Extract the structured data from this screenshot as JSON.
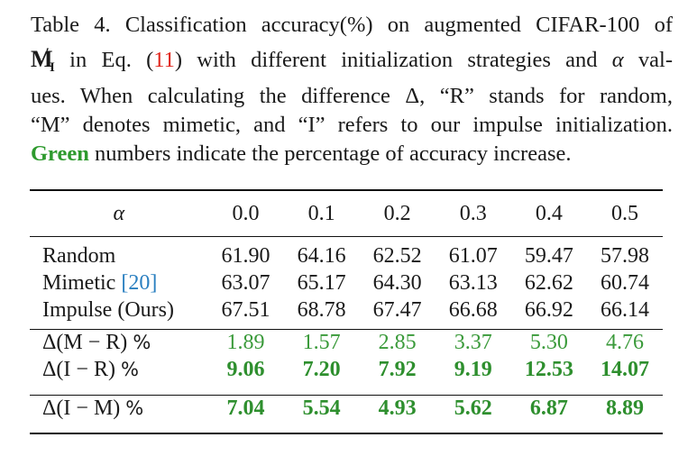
{
  "caption": {
    "line1": "Table 4. Classification accuracy(%) on augmented CIFAR-100 of",
    "line2_symbol_main": "M",
    "line2_symbol_sup": "′",
    "line2_symbol_sub": "I",
    "line2_in_eq": " in Eq. (",
    "line2_ref": "11",
    "line2_rest": ") with different initialization strategies and ",
    "line2_alpha": "α",
    "line2_end": " val-",
    "line3": "ues.  When calculating the difference Δ, “R” stands for random,",
    "line4": "“M” denotes mimetic, and “I” refers to our impulse initialization.",
    "line5_green": "Green",
    "line5_rest": " numbers indicate the percentage of accuracy increase."
  },
  "table": {
    "header_label": "α",
    "alphas": [
      "0.0",
      "0.1",
      "0.2",
      "0.3",
      "0.4",
      "0.5"
    ],
    "rows": [
      {
        "label": "Random",
        "values": [
          "61.90",
          "64.16",
          "62.52",
          "61.07",
          "59.47",
          "57.98"
        ]
      },
      {
        "label": "Mimetic ",
        "cite": "[20]",
        "values": [
          "63.07",
          "65.17",
          "64.30",
          "63.13",
          "62.62",
          "60.74"
        ]
      },
      {
        "label": "Impulse (Ours)",
        "values": [
          "67.51",
          "68.78",
          "67.47",
          "66.68",
          "66.92",
          "66.14"
        ]
      }
    ],
    "delta_rows": [
      {
        "label": "Δ(M − R) ",
        "pct": "%",
        "values": [
          "1.89",
          "1.57",
          "2.85",
          "3.37",
          "5.30",
          "4.76"
        ]
      },
      {
        "label": "Δ(I − R) ",
        "pct": "%",
        "values": [
          "9.06",
          "7.20",
          "7.92",
          "9.19",
          "12.53",
          "14.07"
        ]
      },
      {
        "label": "Δ(I − M) ",
        "pct": "%",
        "values": [
          "7.04",
          "5.54",
          "4.93",
          "5.62",
          "6.87",
          "8.89"
        ]
      }
    ],
    "colors": {
      "green": "#3a9a3a",
      "green_bold": "#2e8f2e",
      "ref_red": "#e0251b",
      "cite_blue": "#2a7fc0"
    }
  }
}
